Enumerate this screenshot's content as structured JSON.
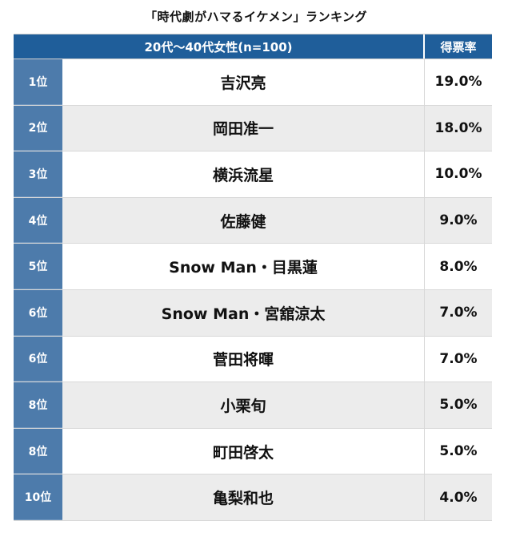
{
  "title": "「時代劇がハマるイケメン」ランキング",
  "chart_data": {
    "type": "table",
    "title": "「時代劇がハマるイケメン」ランキング",
    "columns": [
      "20代〜40代女性(n=100)",
      "得票率"
    ],
    "rows": [
      {
        "rank": "1位",
        "name": "吉沢亮",
        "rate": "19.0%"
      },
      {
        "rank": "2位",
        "name": "岡田准一",
        "rate": "18.0%"
      },
      {
        "rank": "3位",
        "name": "横浜流星",
        "rate": "10.0%"
      },
      {
        "rank": "4位",
        "name": "佐藤健",
        "rate": "9.0%"
      },
      {
        "rank": "5位",
        "name": "Snow Man・目黒蓮",
        "rate": "8.0%"
      },
      {
        "rank": "6位",
        "name": "Snow Man・宮舘涼太",
        "rate": "7.0%"
      },
      {
        "rank": "6位",
        "name": "菅田将暉",
        "rate": "7.0%"
      },
      {
        "rank": "8位",
        "name": "小栗旬",
        "rate": "5.0%"
      },
      {
        "rank": "8位",
        "name": "町田啓太",
        "rate": "5.0%"
      },
      {
        "rank": "10位",
        "name": "亀梨和也",
        "rate": "4.0%"
      }
    ],
    "values": [
      19.0,
      18.0,
      10.0,
      9.0,
      8.0,
      7.0,
      7.0,
      5.0,
      5.0,
      4.0
    ]
  },
  "colors": {
    "header": "#1f5e9a",
    "rank_cell": "#4d7bab",
    "row_alt": "#ececec"
  }
}
